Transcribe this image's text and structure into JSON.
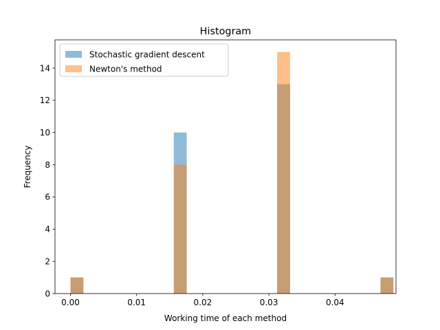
{
  "chart_data": {
    "type": "bar",
    "title": "Histogram",
    "xlabel": "Working time of each method",
    "ylabel": "Frequency",
    "xlim": [
      -0.00234,
      0.04922
    ],
    "ylim": [
      0,
      15.75
    ],
    "xticks": [
      0.0,
      0.01,
      0.02,
      0.03,
      0.04
    ],
    "xtick_labels": [
      "0.00",
      "0.01",
      "0.02",
      "0.03",
      "0.04"
    ],
    "yticks": [
      0,
      2,
      4,
      6,
      8,
      10,
      12,
      14
    ],
    "ytick_labels": [
      "0",
      "2",
      "4",
      "6",
      "8",
      "10",
      "12",
      "14"
    ],
    "bin_width": 0.001953,
    "legend_position": "upper-left",
    "series": [
      {
        "name": "Stochastic gradient descent",
        "color": "#1f77b4",
        "alpha": 0.5,
        "bins": [
          {
            "x": 0.0,
            "count": 1
          },
          {
            "x": 0.015625,
            "count": 10
          },
          {
            "x": 0.03125,
            "count": 13
          },
          {
            "x": 0.046875,
            "count": 1
          }
        ]
      },
      {
        "name": "Newton's method",
        "color": "#ff7f0e",
        "alpha": 0.5,
        "bins": [
          {
            "x": 0.0,
            "count": 1
          },
          {
            "x": 0.015625,
            "count": 8
          },
          {
            "x": 0.03125,
            "count": 15
          },
          {
            "x": 0.046875,
            "count": 1
          }
        ]
      }
    ]
  }
}
